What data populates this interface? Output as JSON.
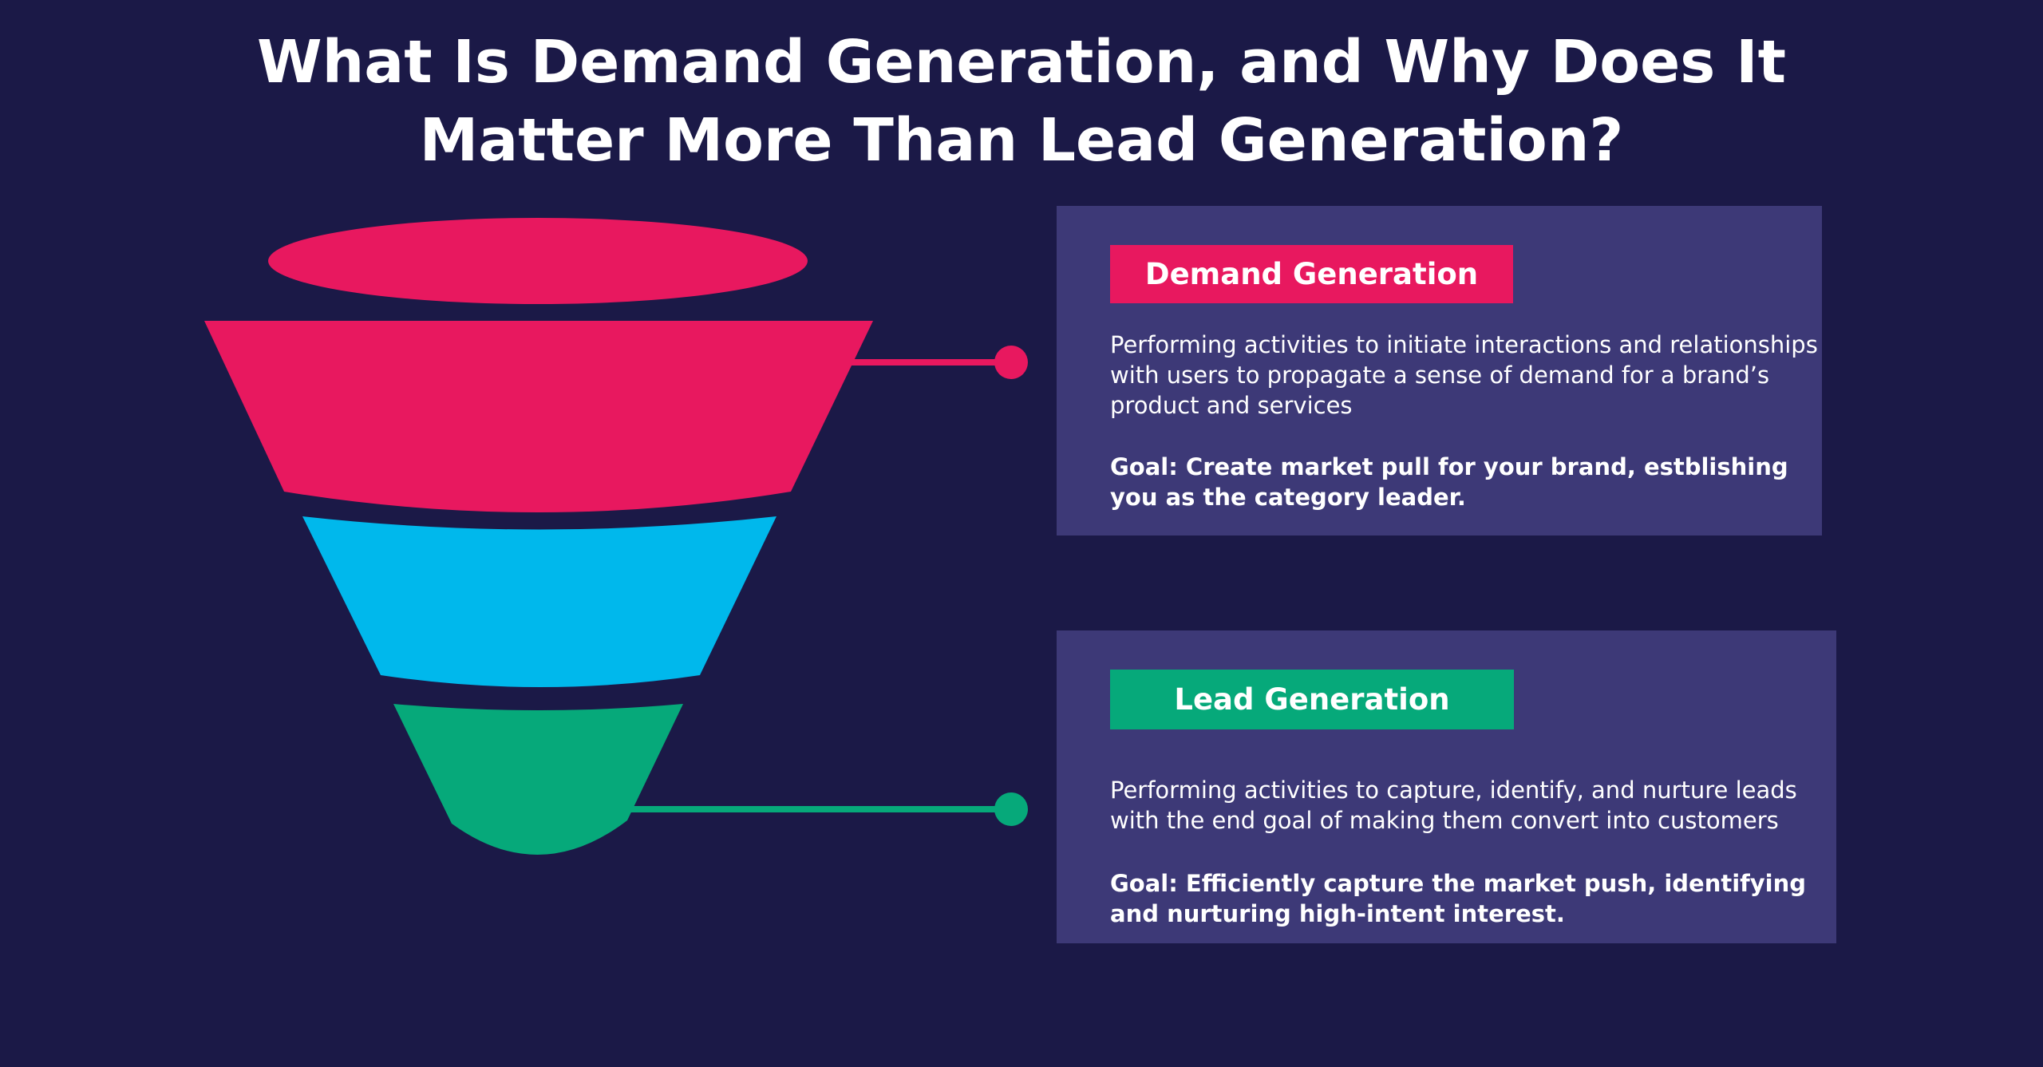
{
  "header": {
    "title_lines": [
      "What Is Demand Generation, and Why Does It",
      "Matter More Than Lead Generation?"
    ]
  },
  "cards": [
    {
      "heading": "Demand Generation",
      "description": "Performing activities to initiate interactions and relationships with users to propagate a sense of demand for a brand’s product and services",
      "goal": "Goal: Create market pull for your brand, estblishing you as the category leader."
    },
    {
      "heading": "Lead Generation",
      "description": "Performing activities to capture, identify, and nurture leads with the end goal of making them convert into customers",
      "goal": "Goal: Efficiently capture the market push, identifying and nurturing high-intent interest."
    }
  ]
}
